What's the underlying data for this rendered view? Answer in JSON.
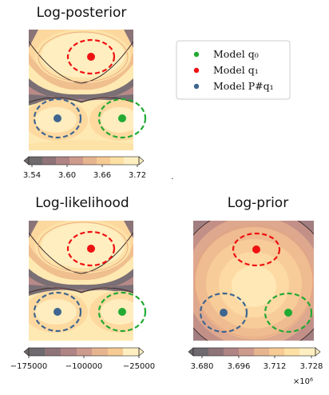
{
  "figure_titles": {
    "posterior": "Log-posterior",
    "likelihood": "Log-likelihood",
    "prior": "Log-prior"
  },
  "chart_data": [
    {
      "type": "heatmap",
      "title": "Log-posterior",
      "colorbar": {
        "ticks": [
          "3.54",
          "3.60",
          "3.66",
          "3.72"
        ],
        "range": [
          3.54,
          3.72
        ],
        "extend": "both"
      },
      "markers": [
        {
          "name": "Model q0",
          "color": "#22aa33"
        },
        {
          "name": "Model q1",
          "color": "#ee1111"
        },
        {
          "name": "Model P#q1",
          "color": "#3f6690"
        }
      ]
    },
    {
      "type": "heatmap",
      "title": "Log-likelihood",
      "colorbar": {
        "ticks": [
          "−175000",
          "−100000",
          "−25000"
        ],
        "range": [
          -175000,
          -25000
        ],
        "extend": "both"
      }
    },
    {
      "type": "heatmap",
      "title": "Log-prior",
      "colorbar": {
        "ticks": [
          "3.680",
          "3.696",
          "3.712",
          "3.728"
        ],
        "range": [
          3.68,
          3.728
        ],
        "extend": "both",
        "multiplier": "×10⁶"
      }
    }
  ],
  "legend": {
    "items": [
      {
        "label": "Model q₀",
        "color": "#22aa33"
      },
      {
        "label": "Model q₁",
        "color": "#ee1111"
      },
      {
        "label": "Model P#q₁",
        "color": "#3f6690"
      }
    ]
  },
  "colors": {
    "green": "#22aa33",
    "red": "#ee1111",
    "blue": "#3f6690",
    "cmap": [
      "#6e6a6e",
      "#8e7478",
      "#b08484",
      "#cd9a8e",
      "#e6b48f",
      "#f6ca93",
      "#fde0a4",
      "#ffefc0"
    ]
  },
  "colorbar_dot": "."
}
